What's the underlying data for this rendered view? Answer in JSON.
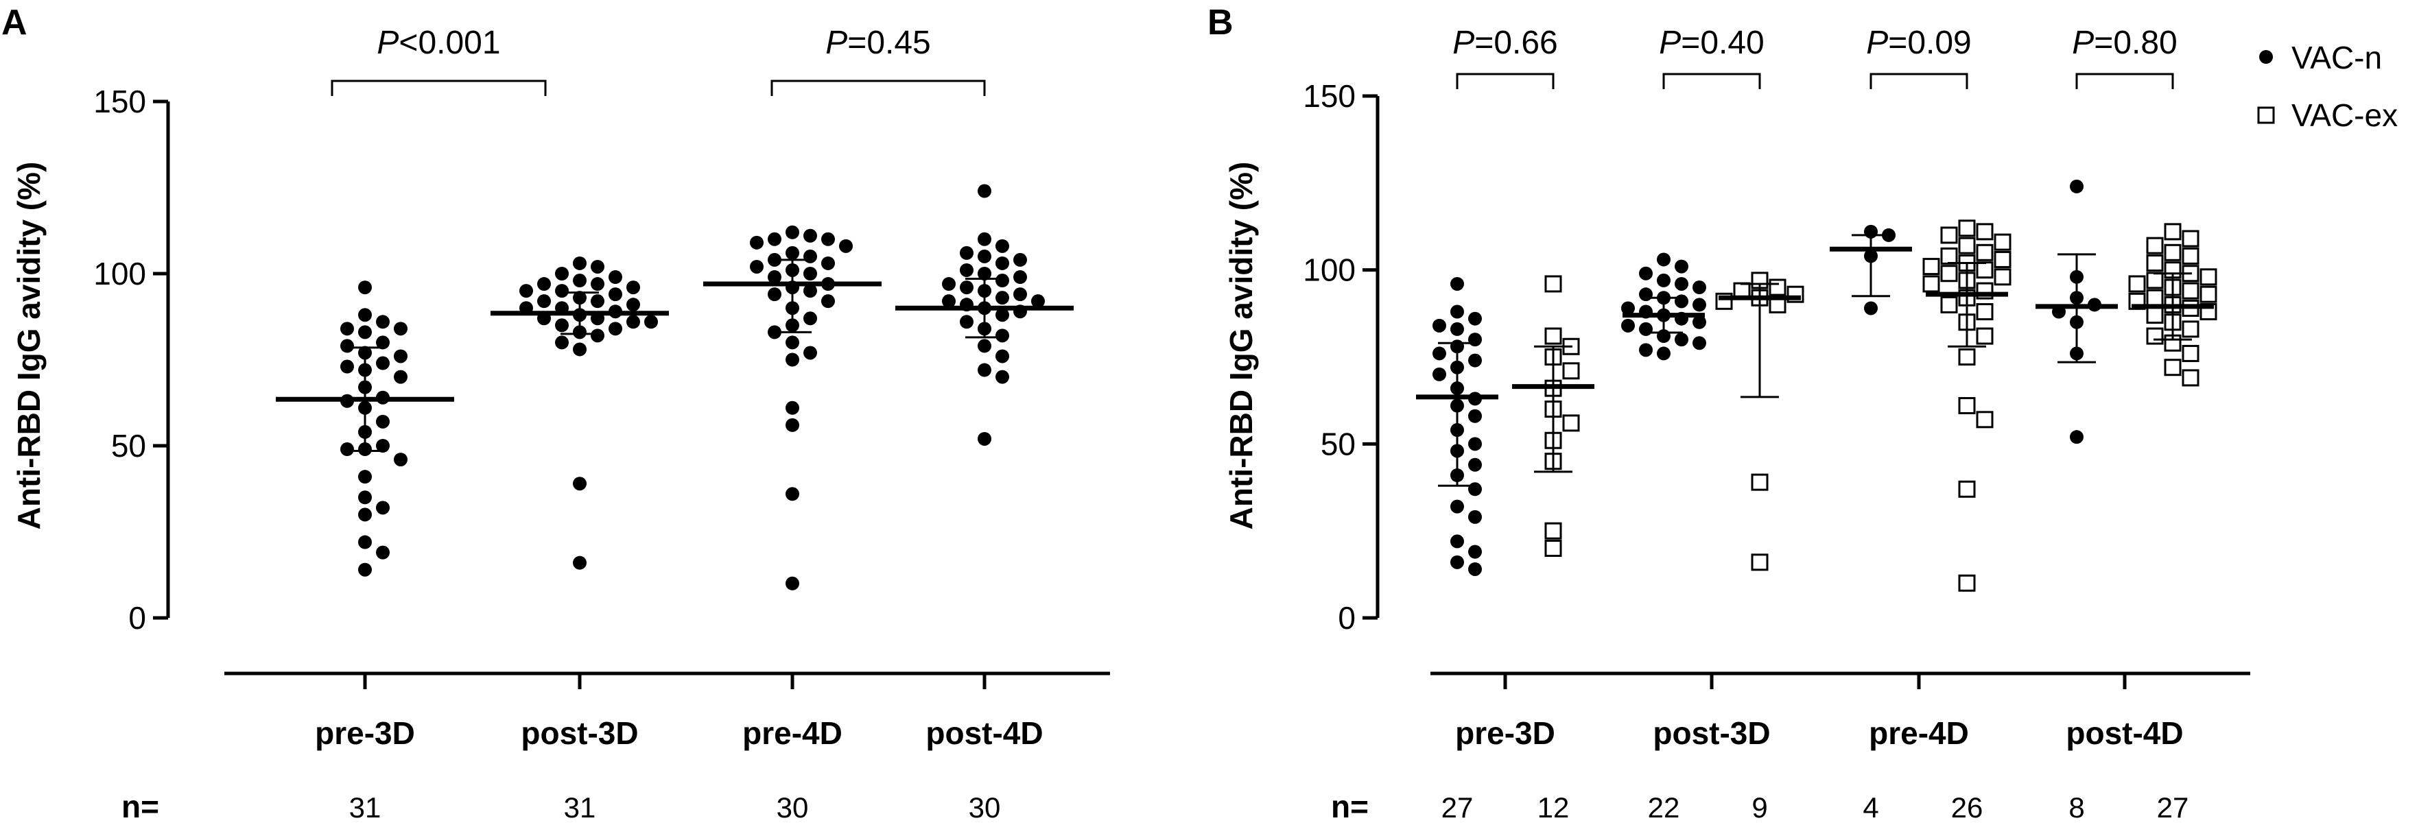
{
  "chart_data": [
    {
      "panel": "A",
      "type": "scatter",
      "ylabel": "Anti-RBD IgG avidity (%)",
      "ylim": [
        0,
        150
      ],
      "yticks": [
        0,
        50,
        100,
        150
      ],
      "n_label": "n=",
      "groups": [
        {
          "label": "pre-3D",
          "n": "31",
          "mean": 63.5,
          "sd_low": 48.5,
          "sd_high": 78.5,
          "values": [
            96,
            88,
            86,
            84,
            84,
            83,
            80,
            79,
            77,
            76,
            74,
            73,
            72,
            70,
            67,
            64,
            63,
            61,
            57,
            54,
            50,
            49,
            49,
            46,
            41,
            35,
            32,
            30,
            22,
            19,
            14
          ]
        },
        {
          "label": "post-3D",
          "n": "31",
          "mean": 88.5,
          "sd_low": 82.5,
          "sd_high": 94.5,
          "values": [
            103,
            102,
            100,
            99,
            98,
            97,
            97,
            96,
            95,
            95,
            94,
            93,
            92,
            92,
            91,
            90,
            90,
            89,
            88,
            87,
            87,
            86,
            86,
            85,
            84,
            83,
            82,
            80,
            78,
            39,
            16
          ]
        },
        {
          "label": "pre-4D",
          "n": "30",
          "mean": 97,
          "sd_low": 83,
          "sd_high": 104,
          "values": [
            112,
            111,
            110,
            110,
            109,
            108,
            106,
            105,
            104,
            103,
            102,
            101,
            100,
            99,
            97,
            96,
            95,
            94,
            92,
            90,
            87,
            85,
            83,
            80,
            77,
            75,
            61,
            56,
            36,
            10
          ]
        },
        {
          "label": "post-4D",
          "n": "30",
          "mean": 90,
          "sd_low": 81.5,
          "sd_high": 98.5,
          "values": [
            124,
            110,
            108,
            106,
            105,
            104,
            103,
            101,
            100,
            99,
            98,
            97,
            96,
            95,
            94,
            93,
            92,
            92,
            91,
            90,
            89,
            88,
            86,
            84,
            82,
            79,
            76,
            72,
            70,
            52
          ]
        }
      ],
      "comparisons": [
        {
          "text": "P<0.001",
          "from": 0,
          "to": 1
        },
        {
          "text": "P=0.45",
          "from": 2,
          "to": 3
        }
      ]
    },
    {
      "panel": "B",
      "type": "scatter",
      "ylabel": "Anti-RBD IgG avidity (%)",
      "ylim": [
        0,
        150
      ],
      "yticks": [
        0,
        50,
        100,
        150
      ],
      "n_label": "n=",
      "legend": [
        {
          "label": "VAC-n",
          "marker": "filled-circle"
        },
        {
          "label": "VAC-ex",
          "marker": "open-square"
        }
      ],
      "categories": [
        "pre-3D",
        "post-3D",
        "pre-4D",
        "post-4D"
      ],
      "groups": [
        {
          "category": "pre-3D",
          "series": "VAC-n",
          "n": "27",
          "mean": 63.5,
          "sd_low": 38,
          "sd_high": 79,
          "values": [
            96,
            88,
            86,
            84,
            83,
            80,
            78,
            76,
            74,
            72,
            70,
            66,
            63,
            61,
            58,
            54,
            50,
            48,
            44,
            41,
            37,
            32,
            29,
            22,
            19,
            16,
            14
          ]
        },
        {
          "category": "pre-3D",
          "series": "VAC-ex",
          "n": "12",
          "mean": 66.5,
          "sd_low": 42,
          "sd_high": 78,
          "values": [
            96,
            81,
            78,
            75,
            71,
            66,
            60,
            56,
            51,
            45,
            25,
            20
          ]
        },
        {
          "category": "post-3D",
          "series": "VAC-n",
          "n": "22",
          "mean": 87,
          "sd_low": 82,
          "sd_high": 92,
          "values": [
            103,
            101,
            99,
            97,
            96,
            95,
            93,
            92,
            91,
            90,
            89,
            88,
            87,
            86,
            85,
            84,
            83,
            81,
            80,
            79,
            77,
            76
          ]
        },
        {
          "category": "post-3D",
          "series": "VAC-ex",
          "n": "9",
          "mean": 92,
          "sd_low": 63.5,
          "sd_high": 96,
          "values": [
            97,
            95,
            94,
            93,
            92,
            91,
            90,
            39,
            16
          ]
        },
        {
          "category": "pre-4D",
          "series": "VAC-n",
          "n": "4",
          "mean": 106,
          "sd_low": 92.5,
          "sd_high": 110,
          "values": [
            111,
            110,
            104,
            89
          ]
        },
        {
          "category": "pre-4D",
          "series": "VAC-ex",
          "n": "26",
          "mean": 93,
          "sd_low": 78,
          "sd_high": 102,
          "values": [
            112,
            111,
            110,
            108,
            107,
            105,
            104,
            103,
            102,
            101,
            100,
            99,
            98,
            97,
            96,
            94,
            92,
            90,
            88,
            85,
            81,
            75,
            61,
            57,
            37,
            10
          ]
        },
        {
          "category": "post-4D",
          "series": "VAC-n",
          "n": "8",
          "mean": 89.5,
          "sd_low": 73.5,
          "sd_high": 104.5,
          "values": [
            124,
            98,
            92,
            90,
            88,
            85,
            76,
            52
          ]
        },
        {
          "category": "post-4D",
          "series": "VAC-ex",
          "n": "27",
          "mean": 89.5,
          "sd_low": 80,
          "sd_high": 99,
          "values": [
            111,
            109,
            107,
            105,
            104,
            102,
            100,
            99,
            98,
            97,
            96,
            95,
            94,
            93,
            92,
            91,
            90,
            89,
            88,
            87,
            85,
            83,
            81,
            79,
            76,
            72,
            69
          ]
        }
      ],
      "comparisons": [
        {
          "text": "P=0.66",
          "category": "pre-3D"
        },
        {
          "text": "P=0.40",
          "category": "post-3D"
        },
        {
          "text": "P=0.09",
          "category": "pre-4D"
        },
        {
          "text": "P=0.80",
          "category": "post-4D"
        }
      ]
    }
  ]
}
